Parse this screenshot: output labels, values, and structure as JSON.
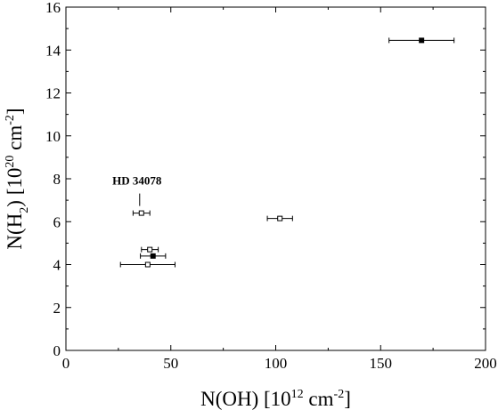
{
  "chart_data": {
    "type": "scatter",
    "xlim": [
      0,
      200
    ],
    "ylim": [
      0,
      16
    ],
    "x_ticks": [
      0,
      50,
      100,
      150,
      200
    ],
    "y_ticks": [
      0,
      2,
      4,
      6,
      8,
      10,
      12,
      14,
      16
    ],
    "xlabel": {
      "base": "N(OH) [10",
      "sup": "12",
      "mid": " cm",
      "sup2": "-2",
      "end": "]"
    },
    "ylabel": {
      "pre": "N(H",
      "sub": "2",
      "post": ") [10",
      "sup": "20",
      "mid": " cm",
      "sup2": "-2",
      "end": "]"
    },
    "grid": false,
    "series": [
      {
        "marker": "filled-square",
        "points": [
          {
            "x": 169.5,
            "y": 14.45,
            "xerr": 15.5
          },
          {
            "x": 41.5,
            "y": 4.4,
            "xerr": 6
          }
        ]
      },
      {
        "marker": "open-square",
        "points": [
          {
            "x": 36,
            "y": 6.4,
            "xerr": 4
          },
          {
            "x": 102,
            "y": 6.15,
            "xerr": 6
          },
          {
            "x": 40,
            "y": 4.7,
            "xerr": 4
          },
          {
            "x": 39,
            "y": 4.0,
            "xerr": 13
          }
        ]
      }
    ],
    "annotations": [
      {
        "text": "HD 34078",
        "x": 36,
        "y": 6.4
      }
    ],
    "colors": {
      "axis": "#000000",
      "marker": "#000000",
      "background": "#ffffff"
    }
  }
}
